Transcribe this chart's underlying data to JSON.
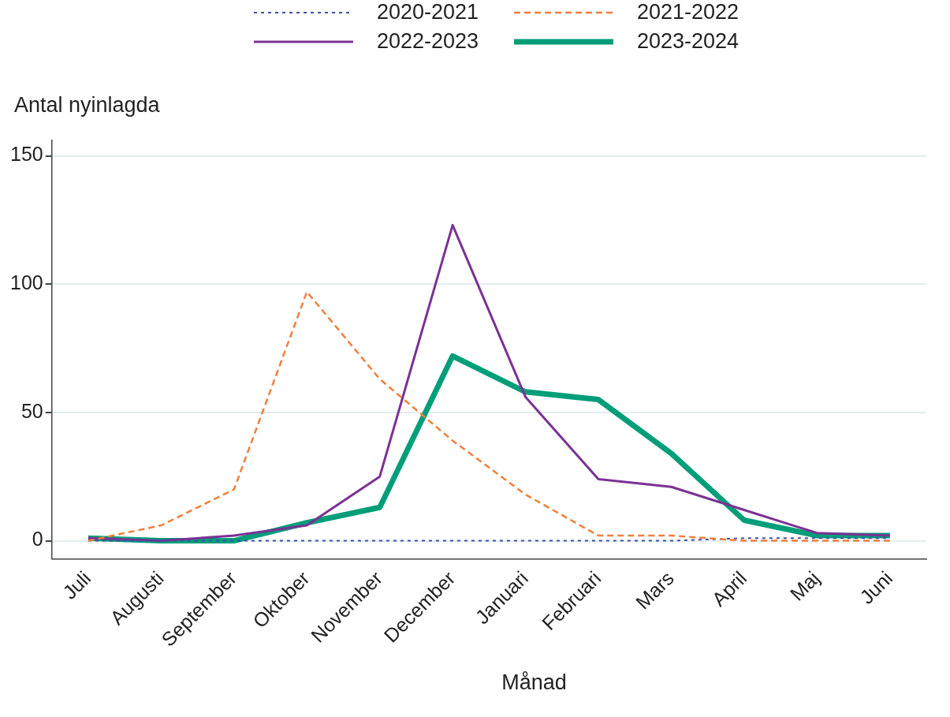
{
  "chart_data": {
    "type": "line",
    "xlabel": "Månad",
    "ylabel": "Antal nyinlagda",
    "categories": [
      "Juli",
      "Augusti",
      "September",
      "Oktober",
      "November",
      "December",
      "Januari",
      "Februari",
      "Mars",
      "April",
      "Maj",
      "Juni"
    ],
    "series": [
      {
        "name": "2020-2021",
        "color": "#3f4fa8",
        "line_style": "dotted",
        "values": [
          0,
          0,
          0,
          0,
          0,
          0,
          0,
          0,
          0,
          1,
          1,
          1
        ]
      },
      {
        "name": "2021-2022",
        "color": "#f07f3c",
        "line_style": "dashed",
        "values": [
          0,
          6,
          20,
          97,
          63,
          39,
          18,
          2,
          2,
          0,
          0,
          0
        ]
      },
      {
        "name": "2022-2023",
        "color": "#7b3294",
        "line_style": "solid",
        "values": [
          1,
          0,
          2,
          6,
          25,
          123,
          56,
          24,
          21,
          12,
          3,
          2
        ]
      },
      {
        "name": "2023-2024",
        "color": "#009e79",
        "line_style": "solid",
        "values": [
          1,
          0,
          0,
          7,
          13,
          72,
          58,
          55,
          34,
          8,
          2,
          2
        ]
      }
    ],
    "ylim": [
      -7,
      156
    ],
    "yticks": [
      0,
      50,
      100,
      150
    ],
    "grid": "y",
    "legend": "top",
    "marker": "none"
  }
}
